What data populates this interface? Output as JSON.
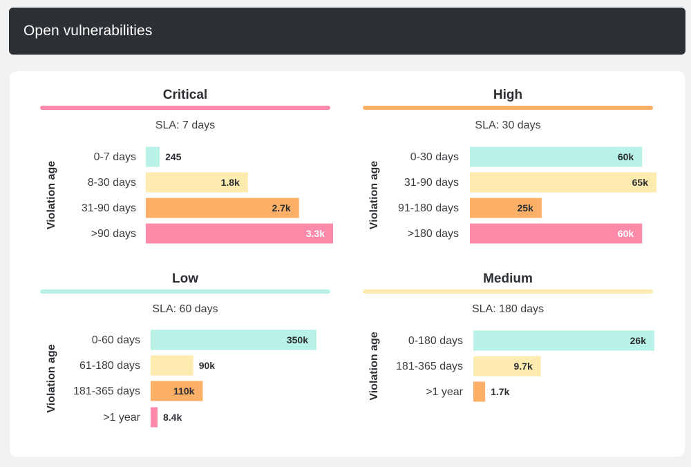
{
  "header": {
    "title": "Open vulnerabilities"
  },
  "colors": {
    "header_bg": "#2d3134",
    "critical": "#fc8aa8",
    "high": "#fcb067",
    "low": "#b8f1e6",
    "medium": "#fdebb0",
    "age_1": "#b8f1e6",
    "age_2": "#fdebb0",
    "age_3": "#fcb067",
    "age_4": "#fc8aa8"
  },
  "chart_data": [
    {
      "type": "bar",
      "orientation": "horizontal",
      "title": "Critical",
      "subtitle": "SLA: 7 days",
      "ylabel": "Violation age",
      "categories": [
        "0-7 days",
        "8-30 days",
        "31-90 days",
        ">90 days"
      ],
      "values": [
        245,
        1800,
        2700,
        3300
      ],
      "labels": [
        "245",
        "1.8k",
        "2.7k",
        "3.3k"
      ],
      "xlim": [
        0,
        3300
      ],
      "grid": false
    },
    {
      "type": "bar",
      "orientation": "horizontal",
      "title": "High",
      "subtitle": "SLA: 30 days",
      "ylabel": "Violation age",
      "categories": [
        "0-30 days",
        "31-90 days",
        "91-180 days",
        ">180 days"
      ],
      "values": [
        60000,
        65000,
        25000,
        60000
      ],
      "labels": [
        "60k",
        "65k",
        "25k",
        "60k"
      ],
      "xlim": [
        0,
        65000
      ],
      "grid": false
    },
    {
      "type": "bar",
      "orientation": "horizontal",
      "title": "Low",
      "subtitle": "SLA: 60 days",
      "ylabel": "Violation age",
      "categories": [
        "0-60 days",
        "61-180 days",
        "181-365 days",
        ">1 year"
      ],
      "values": [
        350000,
        90000,
        110000,
        8400
      ],
      "labels": [
        "350k",
        "90k",
        "110k",
        "8.4k"
      ],
      "xlim": [
        0,
        350000
      ],
      "grid": false
    },
    {
      "type": "bar",
      "orientation": "horizontal",
      "title": "Medium",
      "subtitle": "SLA: 180 days",
      "ylabel": "Violation age",
      "categories": [
        "0-180 days",
        "181-365 days",
        ">1 year"
      ],
      "values": [
        26000,
        9700,
        1700
      ],
      "labels": [
        "26k",
        "9.7k",
        "1.7k"
      ],
      "xlim": [
        0,
        26000
      ],
      "grid": false
    }
  ]
}
